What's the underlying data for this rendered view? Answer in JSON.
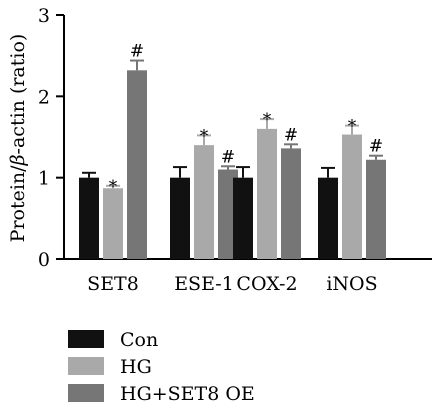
{
  "chart_data": {
    "type": "bar",
    "ylabel_main": "Protein/",
    "ylabel_beta": "β",
    "ylabel_rest": "-actin (ratio)",
    "ylim": [
      0,
      3
    ],
    "yticks": [
      0,
      1,
      2,
      3
    ],
    "ytick_labels": [
      "0",
      "1",
      "2",
      "3"
    ],
    "categories": [
      "SET8",
      "ESE-1",
      "COX-2",
      "iNOS"
    ],
    "legend_position": "bottom",
    "series": [
      {
        "name": "Con",
        "color": "#111111",
        "values": [
          1.0,
          1.0,
          1.0,
          1.0
        ],
        "errors": [
          0.06,
          0.13,
          0.13,
          0.12
        ],
        "marks": [
          "",
          "",
          "",
          ""
        ]
      },
      {
        "name": "HG",
        "color": "#a9a9a9",
        "values": [
          0.87,
          1.4,
          1.6,
          1.53
        ],
        "errors": [
          0.03,
          0.12,
          0.12,
          0.11
        ],
        "marks": [
          "*",
          "*",
          "*",
          "*"
        ]
      },
      {
        "name": "HG+SET8 OE",
        "color": "#767676",
        "values": [
          2.32,
          1.1,
          1.36,
          1.22
        ],
        "errors": [
          0.12,
          0.04,
          0.05,
          0.05
        ],
        "marks": [
          "#",
          "#",
          "#",
          "#"
        ]
      }
    ]
  }
}
